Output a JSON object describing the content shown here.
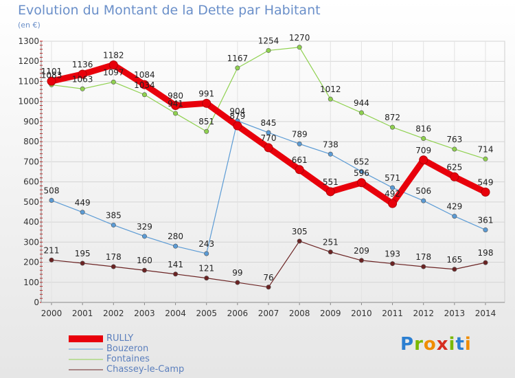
{
  "title": "Evolution du Montant de la Dette par Habitant",
  "subtitle": "(en €)",
  "logo_text": "Proxiti",
  "chart_data": {
    "type": "line",
    "title": "Evolution du Montant de la Dette par Habitant",
    "subtitle": "(en €)",
    "xlabel": "",
    "ylabel": "",
    "x": [
      "2000",
      "2001",
      "2002",
      "2003",
      "2004",
      "2005",
      "2006",
      "2007",
      "2008",
      "2009",
      "2010",
      "2011",
      "2012",
      "2013",
      "2014"
    ],
    "ylim": [
      0,
      1300
    ],
    "yticks": [
      0,
      100,
      200,
      300,
      400,
      500,
      600,
      700,
      800,
      900,
      1000,
      1100,
      1200,
      1300
    ],
    "grid": "horizontal",
    "legend": "bottom-left",
    "series": [
      {
        "name": "RULLY",
        "color": "#e8000b",
        "values": [
          1101,
          1136,
          1182,
          1084,
          980,
          991,
          879,
          770,
          661,
          551,
          596,
          492,
          709,
          625,
          549
        ]
      },
      {
        "name": "Bouzeron",
        "color": "#5b9bd5",
        "values": [
          508,
          449,
          385,
          329,
          280,
          243,
          904,
          845,
          789,
          738,
          652,
          571,
          506,
          429,
          361
        ]
      },
      {
        "name": "Fontaines",
        "color": "#8fd14f",
        "values": [
          1083,
          1063,
          1097,
          1034,
          941,
          851,
          1167,
          1254,
          1270,
          1012,
          944,
          872,
          816,
          763,
          714
        ]
      },
      {
        "name": "Chassey-le-Camp",
        "color": "#6b2323",
        "values": [
          211,
          195,
          178,
          160,
          141,
          121,
          99,
          76,
          305,
          251,
          209,
          193,
          178,
          165,
          198
        ]
      }
    ]
  }
}
